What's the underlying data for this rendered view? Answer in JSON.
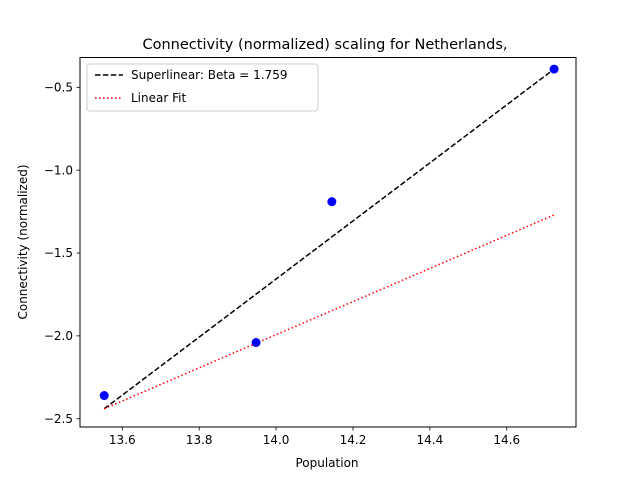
{
  "chart_data": {
    "type": "scatter",
    "title": "Connectivity (normalized) scaling for Netherlands,",
    "xlabel": "Population",
    "ylabel": "Connectivity (normalized)",
    "xlim": [
      13.49,
      14.78
    ],
    "ylim": [
      -2.55,
      -0.32
    ],
    "xticks": [
      13.6,
      13.8,
      14.0,
      14.2,
      14.4,
      14.6
    ],
    "xtick_labels": [
      "13.6",
      "13.8",
      "14.0",
      "14.2",
      "14.4",
      "14.6"
    ],
    "yticks": [
      -2.5,
      -2.0,
      -1.5,
      -1.0,
      -0.5
    ],
    "ytick_labels": [
      "−2.5",
      "−2.0",
      "−1.5",
      "−1.0",
      "−0.5"
    ],
    "grid": false,
    "legend_position": "top-left",
    "points": {
      "x": [
        13.553,
        13.948,
        14.145,
        14.723
      ],
      "y": [
        -2.36,
        -2.04,
        -1.19,
        -0.39
      ],
      "color": "#0000ff"
    },
    "series": [
      {
        "name": "Superlinear: Beta = 1.759",
        "x": [
          13.553,
          14.723
        ],
        "y": [
          -2.44,
          -0.39
        ],
        "style": "dashed",
        "color": "#000000"
      },
      {
        "name": "Linear Fit",
        "x": [
          13.553,
          14.723
        ],
        "y": [
          -2.44,
          -1.27
        ],
        "style": "dotted",
        "color": "#ff0000"
      }
    ]
  }
}
